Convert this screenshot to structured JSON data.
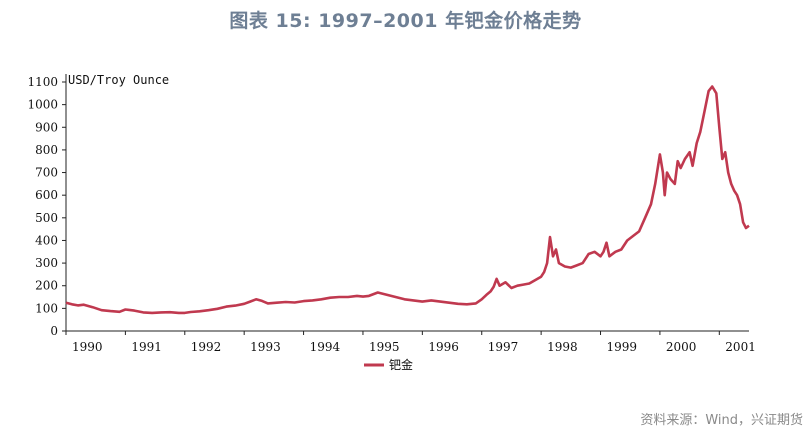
{
  "title": "图表 15: 1997–2001 年钯金价格走势",
  "source": "资料来源：Wind，兴证期货",
  "series_color": "#c0394f",
  "chart_data": {
    "type": "line",
    "title": "图表 15: 1997–2001 年钯金价格走势",
    "ylabel": "USD/Troy Ounce",
    "xlabel": "",
    "ylim": [
      0,
      1100
    ],
    "yticks": [
      0,
      100,
      200,
      300,
      400,
      500,
      600,
      700,
      800,
      900,
      1000,
      1100
    ],
    "xlim": [
      1990.0,
      2001.5
    ],
    "xticks": [
      {
        "label": "1990",
        "pos": 1990.0
      },
      {
        "label": "1991",
        "pos": 1991.0
      },
      {
        "label": "1992",
        "pos": 1992.0
      },
      {
        "label": "1993",
        "pos": 1993.0
      },
      {
        "label": "1994",
        "pos": 1994.0
      },
      {
        "label": "1995",
        "pos": 1995.0
      },
      {
        "label": "1996",
        "pos": 1996.0
      },
      {
        "label": "1997",
        "pos": 1997.0
      },
      {
        "label": "1998",
        "pos": 1998.0
      },
      {
        "label": "1999",
        "pos": 1999.0
      },
      {
        "label": "2000",
        "pos": 2000.0
      },
      {
        "label": "2001",
        "pos": 2001.0
      }
    ],
    "grid": false,
    "legend": "bottom-center",
    "series": [
      {
        "name": "钯金",
        "x": [
          1990.0,
          1990.1,
          1990.2,
          1990.3,
          1990.45,
          1990.6,
          1990.75,
          1990.9,
          1991.0,
          1991.15,
          1991.3,
          1991.45,
          1991.6,
          1991.75,
          1991.9,
          1992.0,
          1992.1,
          1992.25,
          1992.4,
          1992.55,
          1992.7,
          1992.85,
          1993.0,
          1993.1,
          1993.2,
          1993.3,
          1993.4,
          1993.55,
          1993.7,
          1993.85,
          1994.0,
          1994.15,
          1994.3,
          1994.45,
          1994.6,
          1994.75,
          1994.9,
          1995.0,
          1995.1,
          1995.25,
          1995.4,
          1995.55,
          1995.7,
          1995.85,
          1996.0,
          1996.15,
          1996.3,
          1996.45,
          1996.6,
          1996.75,
          1996.9,
          1997.0,
          1997.08,
          1997.15,
          1997.2,
          1997.25,
          1997.3,
          1997.4,
          1997.5,
          1997.6,
          1997.7,
          1997.8,
          1997.9,
          1998.0,
          1998.05,
          1998.1,
          1998.15,
          1998.2,
          1998.25,
          1998.3,
          1998.4,
          1998.5,
          1998.6,
          1998.7,
          1998.8,
          1998.9,
          1999.0,
          1999.05,
          1999.1,
          1999.15,
          1999.25,
          1999.35,
          1999.45,
          1999.55,
          1999.65,
          1999.75,
          1999.85,
          1999.92,
          2000.0,
          2000.05,
          2000.08,
          2000.12,
          2000.18,
          2000.25,
          2000.3,
          2000.35,
          2000.42,
          2000.5,
          2000.55,
          2000.62,
          2000.68,
          2000.75,
          2000.82,
          2000.88,
          2000.95,
          2001.0,
          2001.05,
          2001.1,
          2001.15,
          2001.2,
          2001.25,
          2001.3,
          2001.35,
          2001.4,
          2001.45,
          2001.5
        ],
        "values": [
          125,
          118,
          113,
          116,
          105,
          92,
          88,
          85,
          95,
          90,
          82,
          80,
          82,
          83,
          80,
          80,
          84,
          87,
          92,
          98,
          108,
          112,
          120,
          130,
          140,
          133,
          122,
          125,
          128,
          126,
          132,
          135,
          140,
          147,
          150,
          150,
          155,
          152,
          155,
          170,
          160,
          150,
          140,
          135,
          130,
          135,
          130,
          125,
          120,
          118,
          122,
          140,
          160,
          175,
          195,
          230,
          200,
          215,
          190,
          200,
          205,
          210,
          225,
          240,
          260,
          300,
          415,
          330,
          360,
          300,
          285,
          280,
          290,
          300,
          340,
          350,
          330,
          350,
          390,
          330,
          350,
          360,
          400,
          420,
          440,
          500,
          560,
          650,
          780,
          700,
          600,
          700,
          670,
          650,
          750,
          720,
          760,
          790,
          730,
          830,
          880,
          970,
          1060,
          1080,
          1050,
          900,
          760,
          790,
          700,
          650,
          620,
          600,
          560,
          480,
          455,
          465
        ]
      }
    ]
  }
}
